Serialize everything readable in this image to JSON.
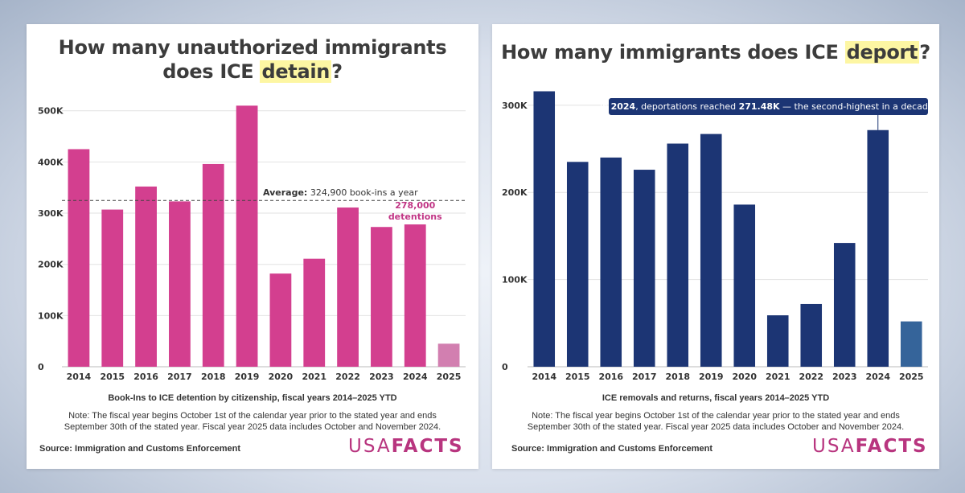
{
  "chart_data": [
    {
      "type": "bar",
      "title_prefix": "How many unauthorized immigrants",
      "title_line2_prefix": "does ICE ",
      "title_highlight": "detain",
      "title_suffix": "?",
      "categories": [
        "2014",
        "2015",
        "2016",
        "2017",
        "2018",
        "2019",
        "2020",
        "2021",
        "2022",
        "2023",
        "2024",
        "2025"
      ],
      "values": [
        425000,
        307000,
        352000,
        323000,
        396000,
        510000,
        182000,
        211000,
        311000,
        273000,
        278000,
        45000
      ],
      "ylim": [
        0,
        520000
      ],
      "yticks": [
        0,
        100000,
        200000,
        300000,
        400000,
        500000
      ],
      "ytick_labels": [
        "0",
        "100K",
        "200K",
        "300K",
        "400K",
        "500K"
      ],
      "color": "#d33f8f",
      "last_color": "#d27fb0",
      "average_value": 324900,
      "average_label_bold": "Average:",
      "average_label_rest": " 324,900 book-ins a year",
      "callout_line1": "278,000",
      "callout_line2": "detentions",
      "callout_color": "#c13585",
      "xlabel": "Book-Ins to ICE detention by citizenship, fiscal years 2014–2025 YTD",
      "note_line1": "Note: The fiscal year begins October 1st of the calendar year prior to the stated year and ends",
      "note_line2": "September 30th of the stated year. Fiscal year 2025 data includes October and November 2024.",
      "source": "Source: Immigration and Customs Enforcement"
    },
    {
      "type": "bar",
      "title_prefix": "How many immigrants does ICE ",
      "title_highlight": "deport",
      "title_suffix": "?",
      "categories": [
        "2014",
        "2015",
        "2016",
        "2017",
        "2018",
        "2019",
        "2020",
        "2021",
        "2022",
        "2023",
        "2024",
        "2025"
      ],
      "values": [
        316000,
        235000,
        240000,
        226000,
        256000,
        267000,
        186000,
        59000,
        72000,
        142000,
        271480,
        52000
      ],
      "ylim": [
        0,
        310000
      ],
      "yticks": [
        0,
        100000,
        200000,
        300000
      ],
      "ytick_labels": [
        "0",
        "100K",
        "200K",
        "300K"
      ],
      "color": "#1c3574",
      "last_color": "#35649a",
      "callout_pre": "In ",
      "callout_year": "2024",
      "callout_mid": ", deportations reached ",
      "callout_value": "271.48K",
      "callout_post": " — the second-highest in a decade.",
      "callout_bg": "#1c3574",
      "xlabel": "ICE removals and returns, fiscal years 2014–2025 YTD",
      "note_line1": "Note: The fiscal year begins October 1st of the calendar year prior to the stated year and ends",
      "note_line2": "September 30th of the stated year. Fiscal year 2025 data includes October and November 2024.",
      "source": "Source: Immigration and Customs Enforcement"
    }
  ],
  "brand": {
    "logo_light": "USA",
    "logo_bold": "FACTS",
    "color": "#b8357f"
  }
}
